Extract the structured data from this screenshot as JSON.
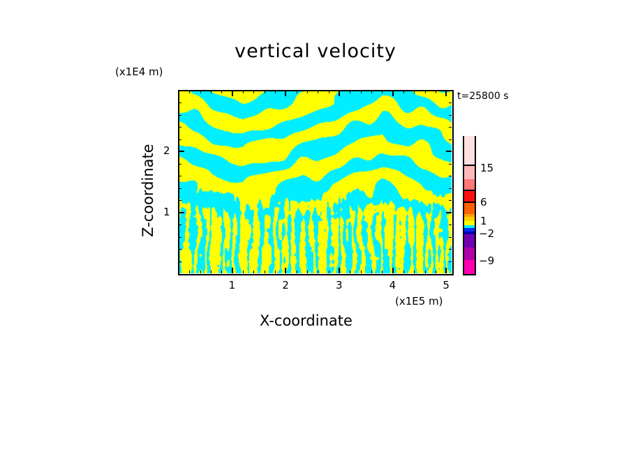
{
  "chart_data": {
    "type": "heatmap",
    "title": "vertical velocity",
    "xlabel": "X-coordinate",
    "ylabel": "Z-coordinate",
    "x_unit": "(x1E5 m)",
    "y_unit": "(x1E4 m)",
    "annotation": "t=25800 s",
    "xlim": [
      0,
      5.1
    ],
    "ylim": [
      0,
      3
    ],
    "x_ticks": [
      "1",
      "2",
      "3",
      "4",
      "5"
    ],
    "y_ticks": [
      "1",
      "2"
    ],
    "field_colors": {
      "positive": "#ffff00",
      "negative": "#00eeff"
    },
    "colorbar": {
      "labels": [
        {
          "text": "15",
          "value": 15
        },
        {
          "text": "6",
          "value": 6
        },
        {
          "text": "1",
          "value": 1
        },
        {
          "text": "−2",
          "value": -2
        },
        {
          "text": "−9",
          "value": -9
        }
      ],
      "segments": [
        "#ff00b0",
        "#b000a8",
        "#7000b0",
        "#0000b0",
        "#0030ff",
        "#00eeff",
        "#ffff00",
        "#ffd000",
        "#ffa000",
        "#ff6000",
        "#ff1010",
        "#ff7878",
        "#ffb8b8",
        "#ffe0e0"
      ]
    }
  }
}
